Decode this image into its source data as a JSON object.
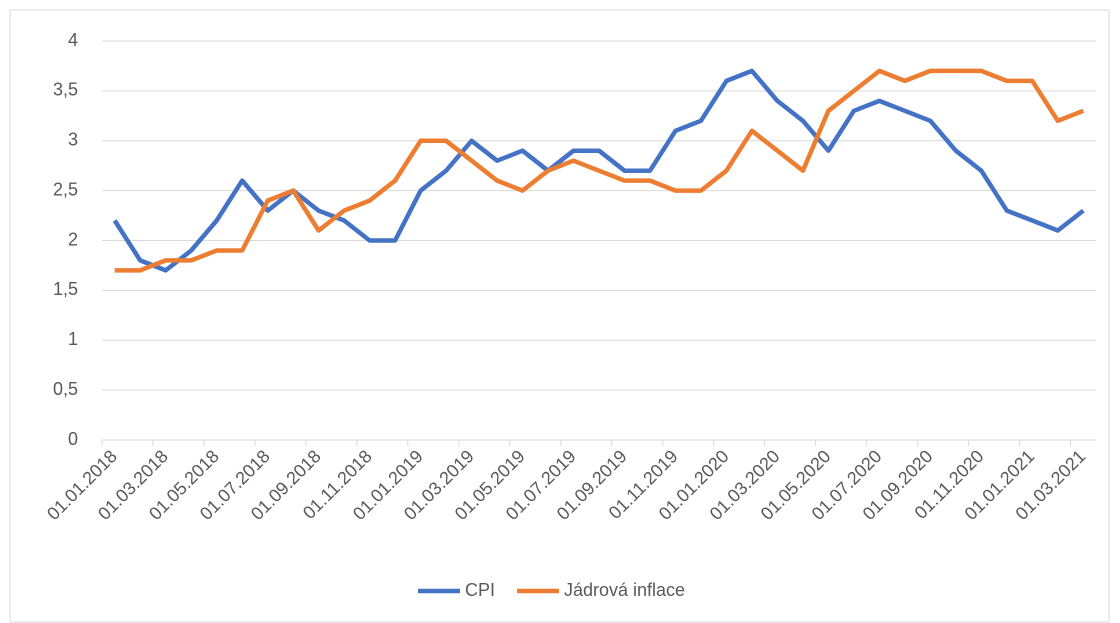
{
  "chart_data": {
    "type": "line",
    "categories": [
      "01.01.2018",
      null,
      "01.03.2018",
      null,
      "01.05.2018",
      null,
      "01.07.2018",
      null,
      "01.09.2018",
      null,
      "01.11.2018",
      null,
      "01.01.2019",
      null,
      "01.03.2019",
      null,
      "01.05.2019",
      null,
      "01.07.2019",
      null,
      "01.09.2019",
      null,
      "01.11.2019",
      null,
      "01.01.2020",
      null,
      "01.03.2020",
      null,
      "01.05.2020",
      null,
      "01.07.2020",
      null,
      "01.09.2020",
      null,
      "01.11.2020",
      null,
      "01.01.2021",
      null,
      "01.03.2021"
    ],
    "series": [
      {
        "name": "CPI",
        "color": "#4472c4",
        "values": [
          2.2,
          1.8,
          1.7,
          1.9,
          2.2,
          2.6,
          2.3,
          2.5,
          2.3,
          2.2,
          2.0,
          2.0,
          2.5,
          2.7,
          3.0,
          2.8,
          2.9,
          2.7,
          2.9,
          2.9,
          2.7,
          2.7,
          3.1,
          3.2,
          3.6,
          3.7,
          3.4,
          3.2,
          2.9,
          3.3,
          3.4,
          3.3,
          3.2,
          2.9,
          2.7,
          2.3,
          2.2,
          2.1,
          2.3
        ]
      },
      {
        "name": "Jádrová inflace",
        "color": "#ed7d31",
        "values": [
          1.7,
          1.7,
          1.8,
          1.8,
          1.9,
          1.9,
          2.4,
          2.5,
          2.1,
          2.3,
          2.4,
          2.6,
          3.0,
          3.0,
          2.8,
          2.6,
          2.5,
          2.7,
          2.8,
          2.7,
          2.6,
          2.6,
          2.5,
          2.5,
          2.7,
          3.1,
          2.9,
          2.7,
          3.3,
          3.5,
          3.7,
          3.6,
          3.7,
          3.7,
          3.7,
          3.6,
          3.6,
          3.2,
          3.3
        ]
      }
    ],
    "ylim": [
      0,
      4
    ],
    "yticks": [
      0,
      {
        "value": 0.5,
        "label": "0,5"
      },
      1,
      {
        "value": 1.5,
        "label": "1,5"
      },
      2,
      {
        "value": 2.5,
        "label": "2,5"
      },
      3,
      {
        "value": 3.5,
        "label": "3,5"
      },
      4
    ],
    "grid": true,
    "legend": "bottom"
  }
}
